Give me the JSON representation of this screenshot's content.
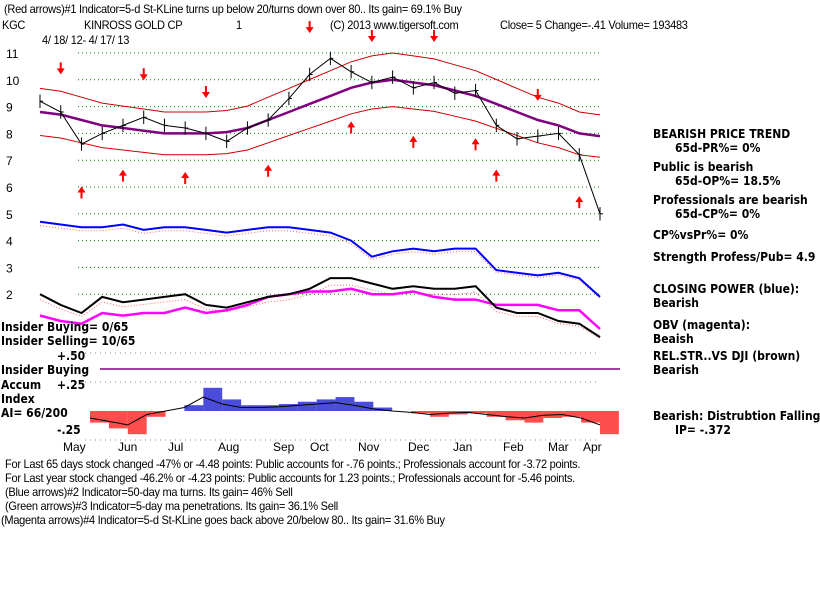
{
  "header": {
    "indicator1": "(Red arrows)#1 Indicator=5-d St-KLine turns up below 20/turns down over 80.. Its gain= 69.1% Buy",
    "symbol": "KGC",
    "name": "KINROSS GOLD CP",
    "num": "1",
    "copyright": "(C) 2013 www.tigersoft.com",
    "quote": "Close=  5  Change=-.41 Volume= 193483",
    "date_range": "4/ 18/ 12- 4/ 17/ 13"
  },
  "right_panel": [
    {
      "title": "BEARISH PRICE TREND",
      "value": "65d-PR%= 0%"
    },
    {
      "title": "Public is bearish",
      "value": "65d-OP%= 18.5%"
    },
    {
      "title": "Professionals are bearish",
      "value": "65d-CP%= 0%"
    },
    {
      "title": "CP%vsPr%=  0%",
      "value": ""
    },
    {
      "title": "Strength Profess/Pub= 4.9",
      "value": ""
    },
    {
      "title": "CLOSING POWER (blue):",
      "value": "Bearish"
    },
    {
      "title": "OBV (magenta):",
      "value": "Beaish"
    },
    {
      "title": "REL.STR..VS DJI (brown)",
      "value": "Bearish"
    },
    {
      "title": "Bearish: Distrubtion Falling",
      "value": "IP= -.372"
    }
  ],
  "left_labels": {
    "insider_buying": "Insider Buying= 0/65",
    "insider_selling": "Insider Selling= 10/65",
    "insider_legend": "Insider Buying",
    "accum": "Accum",
    "index": "Index",
    "ai": "AI= 66/200",
    "plus50": "+.50",
    "plus25": "+.25",
    "minus25": "-.25"
  },
  "footer": [
    "For Last 65 days stock changed -47% or -4.48 points:  Public accounts for -.76 points.;  Professionals account for -3.72 points.",
    "For Last year stock changed -46.2% or -4.23 points:  Public accounts for  1.23 points.;  Professionals account for -5.46 points.",
    "(Blue arrows)#2 Indicator=50-day ma turns. Its gain= 46% Sell",
    "(Green arrows)#3 Indicator=5-day ma penetrations. Its gain= 36.1% Sell",
    "(Magenta arrows)#4 Indicator=5-d St-KLine goes back above 20/below 80.. Its gain= 31.6% Buy"
  ],
  "colors": {
    "price": "#000000",
    "ma": "#800080",
    "band": "#cc0000",
    "cp": "#0000ff",
    "obv": "#ff00ff",
    "relstr": "#000000",
    "grid": "#008000",
    "arrow": "#ff0000",
    "ai_pos": "#0000cc",
    "ai_neg": "#ff0000"
  },
  "chart_data": {
    "type": "line",
    "title": "KINROSS GOLD CP (KGC)",
    "y_ticks": [
      "11",
      "10",
      "9",
      "8",
      "7",
      "6",
      "5",
      "4",
      "3",
      "2"
    ],
    "ylim": [
      1.5,
      11
    ],
    "x_ticks": [
      "May",
      "Jun",
      "Jul",
      "Aug",
      "Sep",
      "Oct",
      "Nov",
      "Dec",
      "Jan",
      "Feb",
      "Mar",
      "Apr"
    ],
    "price": [
      9.2,
      8.8,
      7.6,
      8.0,
      8.3,
      8.6,
      8.3,
      8.2,
      8.0,
      7.7,
      8.2,
      8.5,
      9.3,
      10.2,
      10.8,
      10.3,
      9.9,
      10.1,
      9.7,
      9.9,
      9.5,
      9.6,
      8.3,
      7.8,
      7.9,
      8.0,
      7.2,
      5.0
    ],
    "ma50": [
      8.8,
      8.7,
      8.5,
      8.3,
      8.2,
      8.1,
      8.0,
      8.0,
      8.0,
      8.05,
      8.2,
      8.5,
      8.8,
      9.1,
      9.4,
      9.7,
      9.9,
      10.0,
      9.9,
      9.8,
      9.6,
      9.4,
      9.1,
      8.8,
      8.5,
      8.3,
      8.0,
      7.9
    ],
    "closing_power": [
      4.7,
      4.6,
      4.5,
      4.5,
      4.6,
      4.4,
      4.5,
      4.5,
      4.4,
      4.3,
      4.4,
      4.5,
      4.5,
      4.4,
      4.3,
      4.0,
      3.4,
      3.6,
      3.7,
      3.6,
      3.7,
      3.7,
      2.9,
      2.8,
      2.7,
      2.8,
      2.6,
      1.9
    ],
    "rel_str": [
      2.0,
      1.6,
      1.3,
      1.9,
      1.7,
      1.8,
      1.9,
      2.0,
      1.6,
      1.5,
      1.7,
      1.9,
      2.0,
      2.2,
      2.6,
      2.6,
      2.4,
      2.2,
      2.3,
      2.2,
      2.2,
      2.3,
      1.5,
      1.3,
      1.3,
      1.0,
      0.9,
      0.4
    ],
    "obv": [
      1.2,
      1.0,
      0.9,
      1.3,
      1.2,
      1.3,
      1.3,
      1.5,
      1.3,
      1.4,
      1.6,
      1.9,
      2.0,
      2.1,
      2.1,
      2.2,
      2.0,
      2.0,
      2.1,
      1.9,
      1.8,
      1.8,
      1.6,
      1.6,
      1.6,
      1.4,
      1.4,
      0.7
    ],
    "accum_index": [
      -0.1,
      -0.15,
      -0.2,
      -0.05,
      0.0,
      0.05,
      0.2,
      0.1,
      0.05,
      0.05,
      0.06,
      0.08,
      0.1,
      0.12,
      0.08,
      0.03,
      0.0,
      -0.02,
      -0.05,
      -0.03,
      -0.02,
      -0.05,
      -0.08,
      -0.1,
      -0.06,
      -0.05,
      -0.1,
      -0.2
    ],
    "arrows": [
      {
        "i": 1,
        "dir": "down"
      },
      {
        "i": 2,
        "dir": "up"
      },
      {
        "i": 4,
        "dir": "up"
      },
      {
        "i": 5,
        "dir": "down"
      },
      {
        "i": 7,
        "dir": "up"
      },
      {
        "i": 8,
        "dir": "down"
      },
      {
        "i": 11,
        "dir": "up"
      },
      {
        "i": 13,
        "dir": "down"
      },
      {
        "i": 15,
        "dir": "up"
      },
      {
        "i": 16,
        "dir": "down"
      },
      {
        "i": 18,
        "dir": "up"
      },
      {
        "i": 19,
        "dir": "down"
      },
      {
        "i": 21,
        "dir": "up"
      },
      {
        "i": 22,
        "dir": "up"
      },
      {
        "i": 24,
        "dir": "down"
      },
      {
        "i": 26,
        "dir": "up"
      }
    ]
  }
}
